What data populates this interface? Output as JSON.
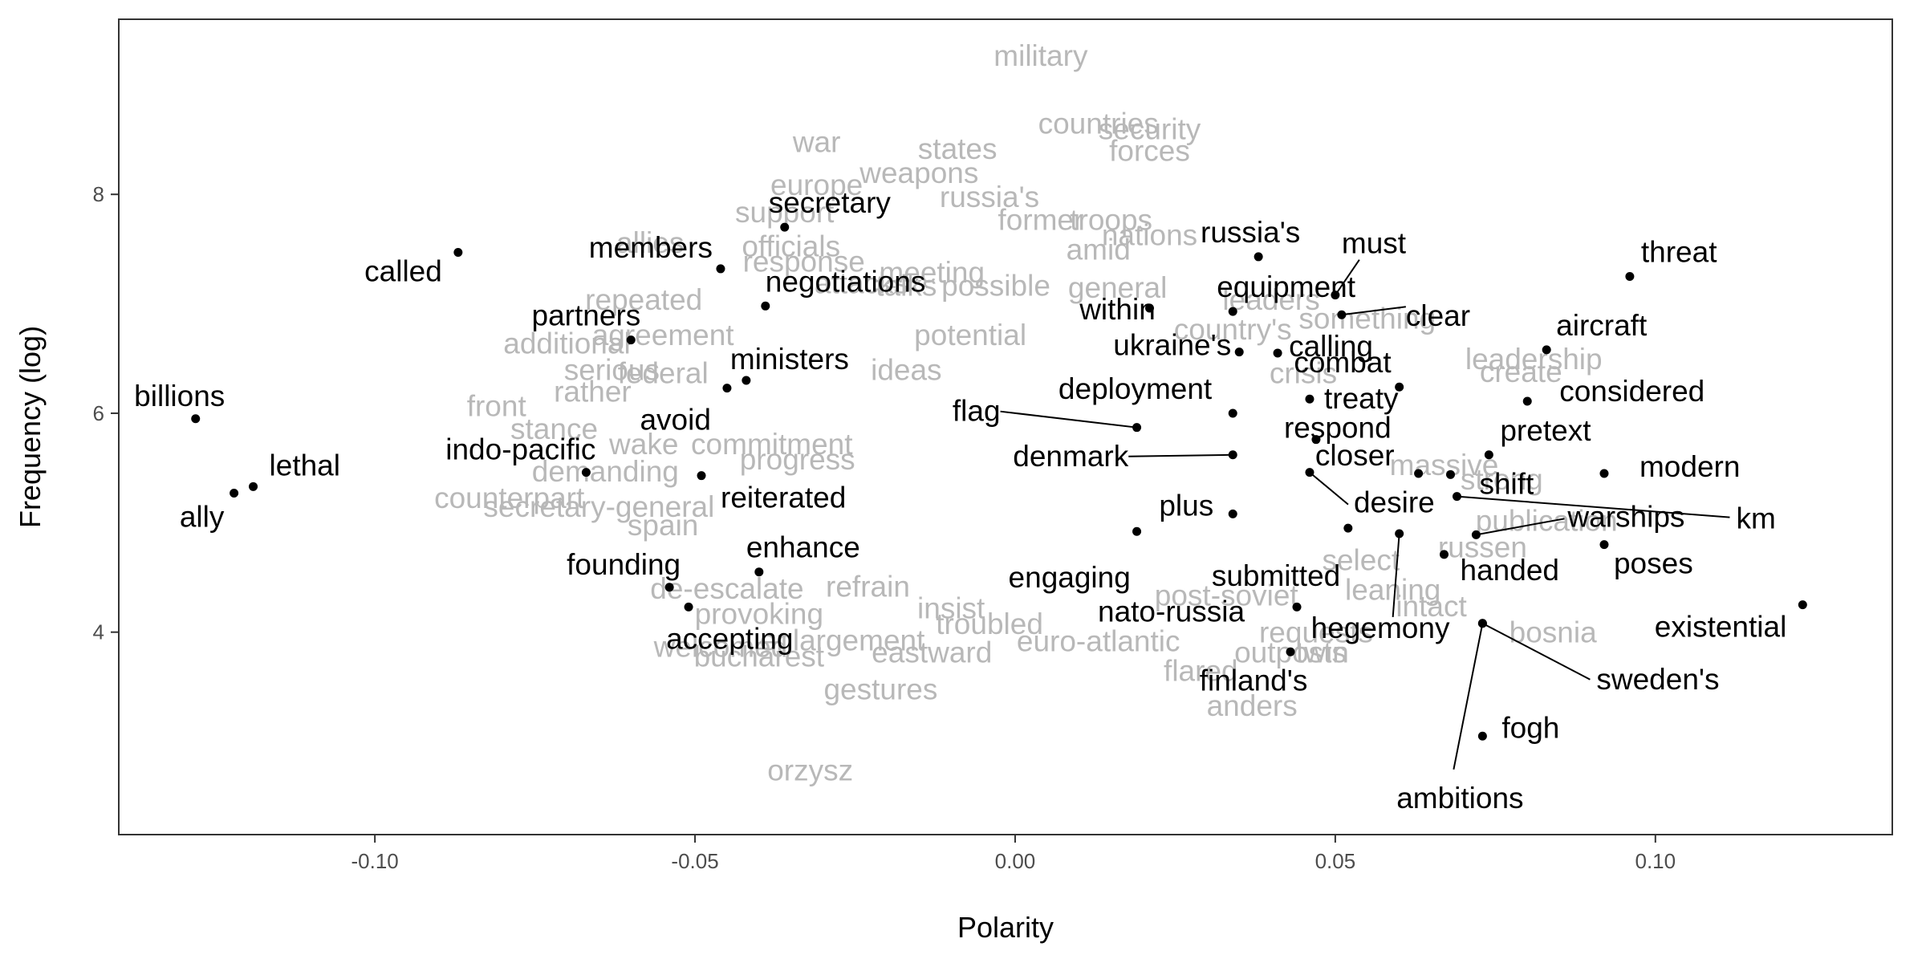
{
  "chart_data": {
    "type": "scatter",
    "title": "",
    "xlabel": "Polarity",
    "ylabel": "Frequency (log)",
    "xlim": [
      -0.14,
      0.137
    ],
    "ylim": [
      2.15,
      9.6
    ],
    "x_ticks": [
      -0.1,
      -0.05,
      0.0,
      0.05,
      0.1
    ],
    "x_tick_labels": [
      "-0.10",
      "-0.05",
      "0.00",
      "0.05",
      "0.10"
    ],
    "y_ticks": [
      4,
      6,
      8
    ],
    "y_tick_labels": [
      "4",
      "6",
      "8"
    ],
    "grid": false,
    "legend": "none",
    "colors": {
      "highlight": "#000000",
      "background_words": "#b8b8b8",
      "tick_text": "#4d4d4d",
      "panel_border": "#333333"
    },
    "highlighted_words": [
      {
        "word": "called",
        "x": -0.087,
        "y": 7.47
      },
      {
        "word": "billions",
        "x": -0.128,
        "y": 5.95
      },
      {
        "word": "lethal",
        "x": -0.119,
        "y": 5.33
      },
      {
        "word": "ally",
        "x": -0.122,
        "y": 5.27
      },
      {
        "word": "members",
        "x": -0.046,
        "y": 7.32
      },
      {
        "word": "secretary",
        "x": -0.036,
        "y": 7.7
      },
      {
        "word": "negotiations",
        "x": -0.039,
        "y": 6.98
      },
      {
        "word": "partners",
        "x": -0.06,
        "y": 6.67
      },
      {
        "word": "ministers",
        "x": -0.042,
        "y": 6.3
      },
      {
        "word": "avoid",
        "x": -0.045,
        "y": 6.23
      },
      {
        "word": "indo-pacific",
        "x": -0.067,
        "y": 5.46
      },
      {
        "word": "reiterated",
        "x": -0.049,
        "y": 5.43
      },
      {
        "word": "enhance",
        "x": -0.04,
        "y": 4.55
      },
      {
        "word": "founding",
        "x": -0.054,
        "y": 4.41
      },
      {
        "word": "accepting",
        "x": -0.051,
        "y": 4.23
      },
      {
        "word": "russia's",
        "x": 0.038,
        "y": 7.43
      },
      {
        "word": "must",
        "x": 0.05,
        "y": 7.08
      },
      {
        "word": "within",
        "x": 0.021,
        "y": 6.96
      },
      {
        "word": "equipment",
        "x": 0.034,
        "y": 6.93
      },
      {
        "word": "clear",
        "x": 0.051,
        "y": 6.9
      },
      {
        "word": "ukraine's",
        "x": 0.035,
        "y": 6.56
      },
      {
        "word": "calling",
        "x": 0.041,
        "y": 6.55
      },
      {
        "word": "threat",
        "x": 0.096,
        "y": 7.25
      },
      {
        "word": "aircraft",
        "x": 0.083,
        "y": 6.58
      },
      {
        "word": "combat",
        "x": 0.06,
        "y": 6.24
      },
      {
        "word": "considered",
        "x": 0.08,
        "y": 6.11
      },
      {
        "word": "flag",
        "x": 0.019,
        "y": 5.87
      },
      {
        "word": "deployment",
        "x": 0.034,
        "y": 6.0
      },
      {
        "word": "treaty",
        "x": 0.046,
        "y": 6.13
      },
      {
        "word": "respond",
        "x": 0.047,
        "y": 5.76
      },
      {
        "word": "pretext",
        "x": 0.074,
        "y": 5.62
      },
      {
        "word": "denmark",
        "x": 0.034,
        "y": 5.62
      },
      {
        "word": "closer",
        "x": 0.063,
        "y": 5.45
      },
      {
        "word": "shift",
        "x": 0.068,
        "y": 5.44
      },
      {
        "word": "modern",
        "x": 0.092,
        "y": 5.45
      },
      {
        "word": "desire",
        "x": 0.046,
        "y": 5.46
      },
      {
        "word": "km",
        "x": 0.069,
        "y": 5.24
      },
      {
        "word": "warships",
        "x": 0.072,
        "y": 4.89
      },
      {
        "word": "plus",
        "x": 0.034,
        "y": 5.08
      },
      {
        "word": "engaging",
        "x": 0.019,
        "y": 4.92
      },
      {
        "word": "submitted",
        "x": 0.052,
        "y": 4.95
      },
      {
        "word": "handed",
        "x": 0.067,
        "y": 4.71
      },
      {
        "word": "poses",
        "x": 0.092,
        "y": 4.8
      },
      {
        "word": "existential",
        "x": 0.123,
        "y": 4.25
      },
      {
        "word": "nato-russia",
        "x": 0.044,
        "y": 4.23
      },
      {
        "word": "hegemony",
        "x": 0.06,
        "y": 4.9
      },
      {
        "word": "ambitions",
        "x": 0.073,
        "y": 4.08
      },
      {
        "word": "sweden's",
        "x": 0.073,
        "y": 4.08
      },
      {
        "word": "finland's",
        "x": 0.043,
        "y": 3.82
      },
      {
        "word": "fogh",
        "x": 0.073,
        "y": 3.05
      }
    ],
    "background_words": [
      {
        "word": "military",
        "x": 0.004,
        "y": 9.27
      },
      {
        "word": "countries",
        "x": 0.013,
        "y": 8.65
      },
      {
        "word": "security",
        "x": 0.021,
        "y": 8.6
      },
      {
        "word": "forces",
        "x": 0.021,
        "y": 8.4
      },
      {
        "word": "war",
        "x": -0.031,
        "y": 8.48
      },
      {
        "word": "states",
        "x": -0.009,
        "y": 8.42
      },
      {
        "word": "weapons",
        "x": -0.015,
        "y": 8.2
      },
      {
        "word": "europe",
        "x": -0.031,
        "y": 8.09
      },
      {
        "word": "russia's",
        "x": -0.004,
        "y": 7.98
      },
      {
        "word": "support",
        "x": -0.036,
        "y": 7.84
      },
      {
        "word": "former",
        "x": 0.004,
        "y": 7.77
      },
      {
        "word": "troops",
        "x": 0.015,
        "y": 7.77
      },
      {
        "word": "nations",
        "x": 0.021,
        "y": 7.63
      },
      {
        "word": "allies",
        "x": -0.057,
        "y": 7.56
      },
      {
        "word": "officials",
        "x": -0.035,
        "y": 7.53
      },
      {
        "word": "amid",
        "x": 0.013,
        "y": 7.5
      },
      {
        "word": "response",
        "x": -0.033,
        "y": 7.39
      },
      {
        "word": "meeting",
        "x": -0.013,
        "y": 7.29
      },
      {
        "word": "attacks",
        "x": -0.024,
        "y": 7.19
      },
      {
        "word": "talks",
        "x": -0.017,
        "y": 7.17
      },
      {
        "word": "possible",
        "x": -0.003,
        "y": 7.17
      },
      {
        "word": "general",
        "x": 0.016,
        "y": 7.15
      },
      {
        "word": "repeated",
        "x": -0.058,
        "y": 7.04
      },
      {
        "word": "leaders",
        "x": 0.04,
        "y": 7.04
      },
      {
        "word": "country's",
        "x": 0.034,
        "y": 6.77
      },
      {
        "word": "something",
        "x": 0.055,
        "y": 6.87
      },
      {
        "word": "additional",
        "x": -0.07,
        "y": 6.64
      },
      {
        "word": "agreement",
        "x": -0.055,
        "y": 6.72
      },
      {
        "word": "potential",
        "x": -0.007,
        "y": 6.72
      },
      {
        "word": "serious",
        "x": -0.063,
        "y": 6.4
      },
      {
        "word": "federal",
        "x": -0.055,
        "y": 6.37
      },
      {
        "word": "ideas",
        "x": -0.017,
        "y": 6.4
      },
      {
        "word": "crisis",
        "x": 0.045,
        "y": 6.37
      },
      {
        "word": "create",
        "x": 0.079,
        "y": 6.38
      },
      {
        "word": "leadership",
        "x": 0.081,
        "y": 6.5
      },
      {
        "word": "front",
        "x": -0.081,
        "y": 6.07
      },
      {
        "word": "stance",
        "x": -0.072,
        "y": 5.86
      },
      {
        "word": "rather",
        "x": -0.066,
        "y": 6.2
      },
      {
        "word": "wake",
        "x": -0.058,
        "y": 5.72
      },
      {
        "word": "commitment",
        "x": -0.038,
        "y": 5.72
      },
      {
        "word": "progress",
        "x": -0.034,
        "y": 5.58
      },
      {
        "word": "demanding",
        "x": -0.064,
        "y": 5.47
      },
      {
        "word": "counterpart",
        "x": -0.079,
        "y": 5.23
      },
      {
        "word": "secretary-general",
        "x": -0.065,
        "y": 5.15
      },
      {
        "word": "spain",
        "x": -0.055,
        "y": 4.98
      },
      {
        "word": "massive",
        "x": 0.067,
        "y": 5.53
      },
      {
        "word": "strong",
        "x": 0.076,
        "y": 5.4
      },
      {
        "word": "publication",
        "x": 0.083,
        "y": 5.02
      },
      {
        "word": "russen",
        "x": 0.073,
        "y": 4.78
      },
      {
        "word": "select",
        "x": 0.054,
        "y": 4.66
      },
      {
        "word": "de-escalate",
        "x": -0.045,
        "y": 4.4
      },
      {
        "word": "refrain",
        "x": -0.023,
        "y": 4.42
      },
      {
        "word": "provoking",
        "x": -0.04,
        "y": 4.17
      },
      {
        "word": "insist",
        "x": -0.01,
        "y": 4.22
      },
      {
        "word": "troubled",
        "x": -0.004,
        "y": 4.08
      },
      {
        "word": "eastward",
        "x": -0.013,
        "y": 3.82
      },
      {
        "word": "euro-atlantic",
        "x": 0.013,
        "y": 3.92
      },
      {
        "word": "enlargement",
        "x": -0.027,
        "y": 3.93
      },
      {
        "word": "welcomed",
        "x": -0.046,
        "y": 3.87
      },
      {
        "word": "bucharest",
        "x": -0.04,
        "y": 3.78
      },
      {
        "word": "gestures",
        "x": -0.021,
        "y": 3.48
      },
      {
        "word": "post-soviet",
        "x": 0.033,
        "y": 4.34
      },
      {
        "word": "leaning",
        "x": 0.059,
        "y": 4.39
      },
      {
        "word": "intact",
        "x": 0.065,
        "y": 4.24
      },
      {
        "word": "bosnia",
        "x": 0.084,
        "y": 4.0
      },
      {
        "word": "requests",
        "x": 0.047,
        "y": 4.0
      },
      {
        "word": "outposts",
        "x": 0.043,
        "y": 3.82
      },
      {
        "word": "twin",
        "x": 0.048,
        "y": 3.82
      },
      {
        "word": "flared",
        "x": 0.029,
        "y": 3.65
      },
      {
        "word": "anders",
        "x": 0.037,
        "y": 3.33
      },
      {
        "word": "orzysz",
        "x": -0.032,
        "y": 2.74
      }
    ]
  }
}
